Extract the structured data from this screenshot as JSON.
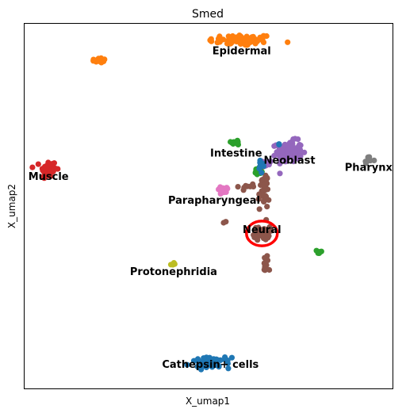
{
  "chart_data": {
    "type": "scatter",
    "title": "Smed",
    "xlabel": "X_umap1",
    "ylabel": "X_umap2",
    "xlim": [
      0,
      100
    ],
    "ylim": [
      0,
      100
    ],
    "grid": false,
    "legend": "on data",
    "ticks": false,
    "highlight": {
      "shape": "ellipse",
      "color": "#ff0000",
      "center": [
        64.5,
        42.5
      ],
      "radius_x": 4.2,
      "radius_y": 3.4
    },
    "series": [
      {
        "name": "Epidermal",
        "color": "#ff7f0e",
        "clusters": [
          {
            "cx": 59,
            "cy": 95.5,
            "sx": 7.5,
            "sy": 1.3,
            "n": 75
          },
          {
            "cx": 20,
            "cy": 90,
            "sx": 2.0,
            "sy": 0.6,
            "n": 12
          }
        ]
      },
      {
        "name": "Muscle",
        "color": "#d62728",
        "clusters": [
          {
            "cx": 6.5,
            "cy": 60,
            "sx": 1.8,
            "sy": 2.2,
            "n": 55
          }
        ]
      },
      {
        "name": "Intestine",
        "color": "#2ca02c",
        "clusters": [
          {
            "cx": 57.5,
            "cy": 67.5,
            "sx": 1.2,
            "sy": 0.6,
            "n": 10
          },
          {
            "cx": 63.5,
            "cy": 59.5,
            "sx": 1.2,
            "sy": 1.2,
            "n": 12
          },
          {
            "cx": 80,
            "cy": 37.5,
            "sx": 0.8,
            "sy": 0.5,
            "n": 6
          }
        ]
      },
      {
        "name": "Neoblast",
        "color": "#9467bd",
        "clusters": [
          {
            "cx": 72,
            "cy": 65,
            "sx": 2.8,
            "sy": 2.4,
            "n": 110
          },
          {
            "cx": 66,
            "cy": 62,
            "sx": 1.2,
            "sy": 1.0,
            "n": 14
          }
        ]
      },
      {
        "name": "Pharynx",
        "color": "#7f7f7f",
        "clusters": [
          {
            "cx": 93.5,
            "cy": 62.5,
            "sx": 1.2,
            "sy": 0.8,
            "n": 10
          }
        ]
      },
      {
        "name": "Parapharyngeal",
        "color": "#e377c2",
        "clusters": [
          {
            "cx": 54,
            "cy": 54.5,
            "sx": 1.6,
            "sy": 0.8,
            "n": 14
          }
        ]
      },
      {
        "name": "Neural",
        "color": "#8c564b",
        "clusters": [
          {
            "cx": 64.5,
            "cy": 42.5,
            "sx": 1.8,
            "sy": 1.5,
            "n": 45
          },
          {
            "cx": 65,
            "cy": 54,
            "sx": 1.2,
            "sy": 4.5,
            "n": 40
          },
          {
            "cx": 65.5,
            "cy": 34,
            "sx": 0.6,
            "sy": 2.2,
            "n": 14
          },
          {
            "cx": 60.5,
            "cy": 55.5,
            "sx": 2.0,
            "sy": 0.8,
            "n": 8
          },
          {
            "cx": 54.5,
            "cy": 45.5,
            "sx": 0.3,
            "sy": 0.3,
            "n": 2
          }
        ]
      },
      {
        "name": "Protonephridia",
        "color": "#bcbd22",
        "clusters": [
          {
            "cx": 40.5,
            "cy": 34,
            "sx": 0.6,
            "sy": 0.4,
            "n": 4
          }
        ]
      },
      {
        "name": "Cathepsin+ cells",
        "color": "#1f77b4",
        "clusters": [
          {
            "cx": 50.5,
            "cy": 7,
            "sx": 4.5,
            "sy": 1.2,
            "n": 60
          },
          {
            "cx": 64.5,
            "cy": 61,
            "sx": 0.8,
            "sy": 1.8,
            "n": 10
          },
          {
            "cx": 69,
            "cy": 67,
            "sx": 0.3,
            "sy": 0.3,
            "n": 2
          }
        ]
      }
    ],
    "labels": [
      {
        "text": "Epidermal",
        "x": 59,
        "y": 92.5
      },
      {
        "text": "Intestine",
        "x": 57.5,
        "y": 64.5
      },
      {
        "text": "Neoblast",
        "x": 72,
        "y": 62.5
      },
      {
        "text": "Pharynx",
        "x": 93.5,
        "y": 60.5
      },
      {
        "text": "Muscle",
        "x": 6.5,
        "y": 58
      },
      {
        "text": "Parapharyngeal",
        "x": 51.5,
        "y": 51.5
      },
      {
        "text": "Neural",
        "x": 64.5,
        "y": 43.5
      },
      {
        "text": "Protonephridia",
        "x": 40.5,
        "y": 32
      },
      {
        "text": "Cathepsin+ cells",
        "x": 50.5,
        "y": 6.5
      }
    ]
  }
}
